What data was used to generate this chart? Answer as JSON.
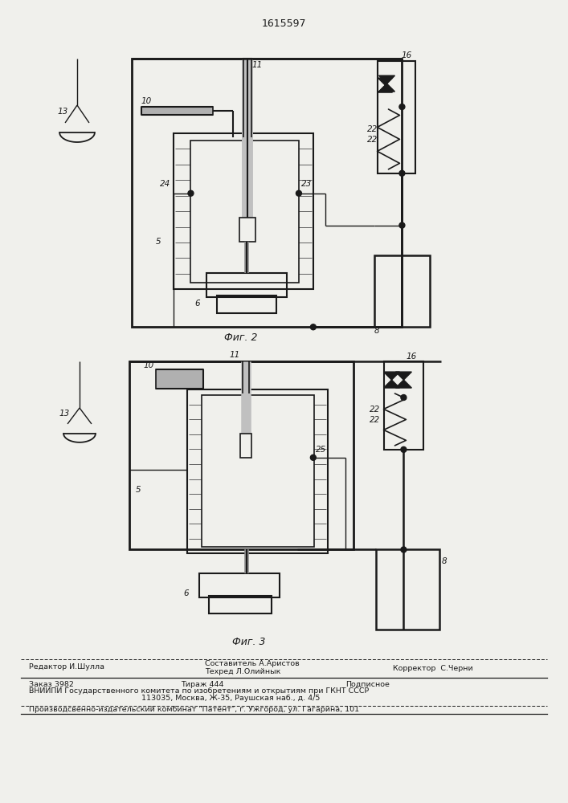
{
  "title": "1615597",
  "fig2_caption": "Фиг. 2",
  "fig3_caption": "Фиг. 3",
  "footer_line1_left": "Редактор И.Шулла",
  "footer_line1_center": "Составитель А.Аристов",
  "footer_line2_center": "Техред Л.Олийнык",
  "footer_line1_right": "Корректор  С.Черни",
  "footer_order": "Заказ 3982",
  "footer_tirazh": "Тираж 444",
  "footer_podpisnoe": "Подписное",
  "footer_vnipi": "ВНИИПИ Государственного комитета по изобретениям и открытиям при ГКНТ СССР",
  "footer_address": "113035, Москва, Ж-35, Раушская наб., д. 4/5",
  "footer_patent": "Производсвенно-издательский комбинат \"Патент\", г. Ужгород, ул. Гагарина, 101",
  "bg_color": "#f0f0ec",
  "line_color": "#1a1a1a"
}
